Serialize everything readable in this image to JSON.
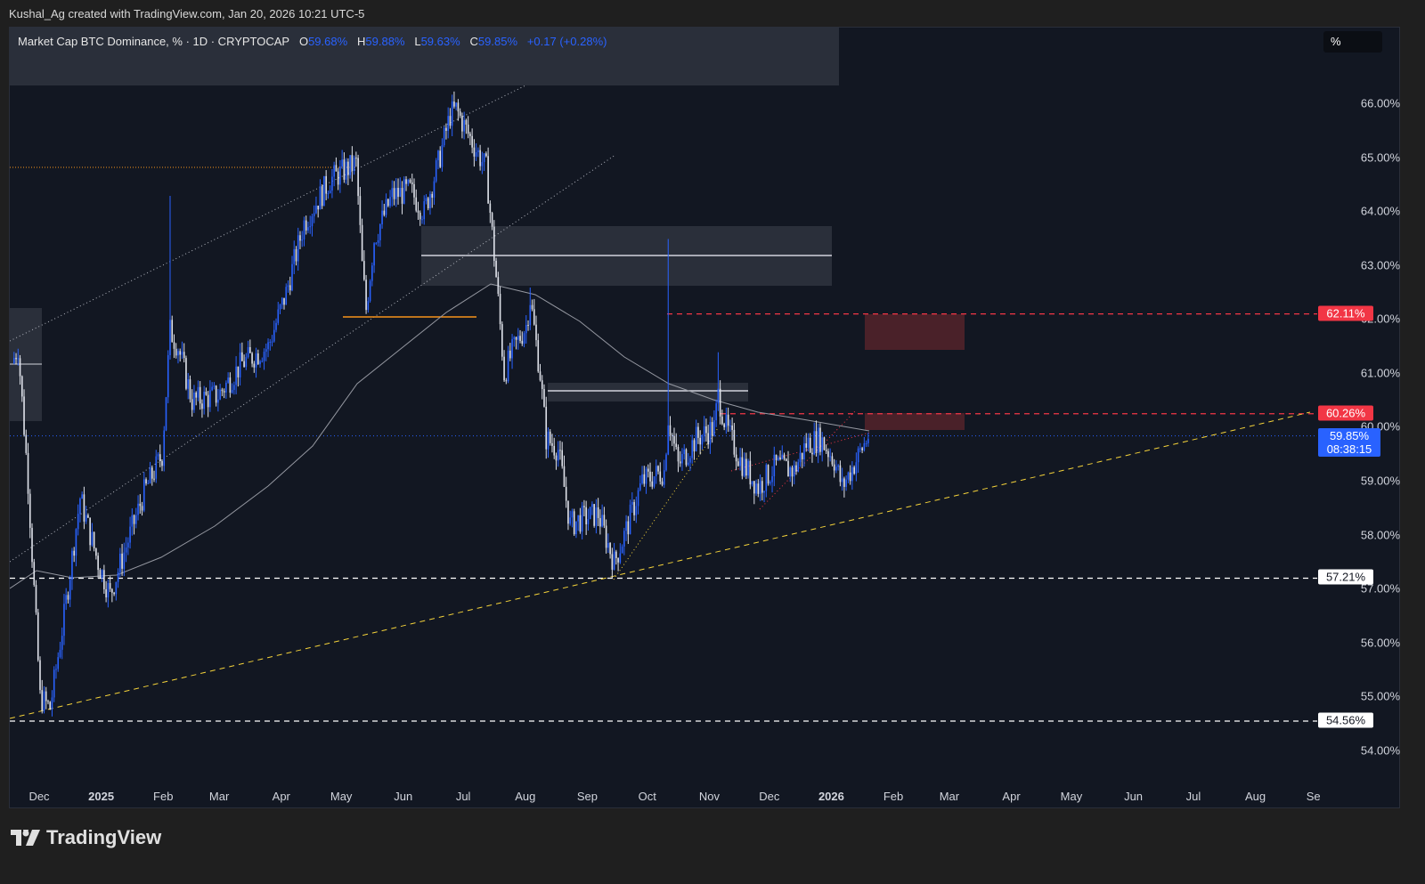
{
  "credit": "Kushal_Ag created with TradingView.com, Jan 20, 2026 10:21 UTC-5",
  "legend": {
    "title": "Market Cap BTC Dominance, % · 1D · CRYPTOCAP",
    "o_label": "O",
    "o": "59.68%",
    "h_label": "H",
    "h": "59.88%",
    "l_label": "L",
    "l": "59.63%",
    "c_label": "C",
    "c": "59.85%",
    "change": "+0.17 (+0.28%)"
  },
  "scale_button": "%",
  "brand": "TradingView",
  "chart_data": {
    "type": "candlestick",
    "title": "Market Cap BTC Dominance, % · 1D · CRYPTOCAP",
    "ylim": [
      53.5,
      66.7
    ],
    "y_ticks": [
      "66.00%",
      "65.00%",
      "64.00%",
      "63.00%",
      "62.00%",
      "61.00%",
      "60.00%",
      "59.00%",
      "58.00%",
      "57.00%",
      "56.00%",
      "55.00%",
      "54.00%"
    ],
    "y_tick_values": [
      66,
      65,
      64,
      63,
      62,
      61,
      60,
      59,
      58,
      57,
      56,
      55,
      54
    ],
    "x_ticks": [
      "Dec",
      "2025",
      "Feb",
      "Mar",
      "Apr",
      "May",
      "Jun",
      "Jul",
      "Aug",
      "Sep",
      "Oct",
      "Nov",
      "Dec",
      "2026",
      "Feb",
      "Mar",
      "Apr",
      "May",
      "Jun",
      "Jul",
      "Aug",
      "Se"
    ],
    "x_tick_days": [
      0,
      31,
      62,
      90,
      121,
      151,
      182,
      212,
      243,
      274,
      304,
      335,
      365,
      396,
      427,
      455,
      486,
      516,
      547,
      577,
      608,
      637
    ],
    "x_unit": "days since Dec 1 2024",
    "close_path": [
      [
        -14,
        61.2
      ],
      [
        -11,
        61.5
      ],
      [
        -6,
        59
      ],
      [
        0,
        55
      ],
      [
        5,
        54.8
      ],
      [
        12,
        56.5
      ],
      [
        20,
        58.7
      ],
      [
        29,
        57.5
      ],
      [
        35,
        56.9
      ],
      [
        43,
        57.8
      ],
      [
        52,
        58.8
      ],
      [
        61,
        59.5
      ],
      [
        65,
        61.8
      ],
      [
        69,
        61.5
      ],
      [
        76,
        60.5
      ],
      [
        89,
        60.6
      ],
      [
        101,
        61.2
      ],
      [
        114,
        61.5
      ],
      [
        123,
        62.5
      ],
      [
        132,
        63.8
      ],
      [
        145,
        64.6
      ],
      [
        158,
        64.9
      ],
      [
        161,
        63.0
      ],
      [
        163,
        62.2
      ],
      [
        167,
        63.5
      ],
      [
        176,
        64.3
      ],
      [
        185,
        64.4
      ],
      [
        192,
        64.0
      ],
      [
        199,
        64.9
      ],
      [
        205,
        65.8
      ],
      [
        208,
        65.9
      ],
      [
        216,
        65.3
      ],
      [
        223,
        64.8
      ],
      [
        228,
        62.8
      ],
      [
        232,
        61.0
      ],
      [
        236,
        61.4
      ],
      [
        243,
        61.9
      ],
      [
        245,
        62.4
      ],
      [
        250,
        61.0
      ],
      [
        253,
        59.8
      ],
      [
        259,
        59.6
      ],
      [
        265,
        58.2
      ],
      [
        270,
        58.3
      ],
      [
        279,
        58.4
      ],
      [
        287,
        57.5
      ],
      [
        292,
        58.0
      ],
      [
        301,
        59.0
      ],
      [
        312,
        59.2
      ],
      [
        314,
        60.2
      ],
      [
        319,
        59.3
      ],
      [
        328,
        59.8
      ],
      [
        337,
        60.0
      ],
      [
        339,
        60.6
      ],
      [
        343,
        60.0
      ],
      [
        350,
        59.4
      ],
      [
        359,
        58.9
      ],
      [
        368,
        59.3
      ],
      [
        377,
        59.2
      ],
      [
        383,
        59.7
      ],
      [
        390,
        59.8
      ],
      [
        397,
        59.4
      ],
      [
        401,
        58.9
      ],
      [
        408,
        59.4
      ],
      [
        414,
        59.85
      ]
    ],
    "spike_highs": [
      [
        65,
        64.3
      ],
      [
        314,
        63.5
      ],
      [
        339,
        61.4
      ],
      [
        245,
        62.6
      ]
    ],
    "levels": [
      {
        "label": "62.11%",
        "value": 62.11,
        "color": "#f23645"
      },
      {
        "label": "60.26%",
        "value": 60.26,
        "color": "#f23645"
      },
      {
        "label": "57.21%",
        "value": 57.21,
        "color": "#ffffff"
      },
      {
        "label": "54.56%",
        "value": 54.56,
        "color": "#ffffff"
      }
    ],
    "last": {
      "price": "59.85%",
      "countdown": "08:38:15",
      "color": "#2962ff"
    },
    "colors": {
      "up": "#2962ff",
      "down": "#e0e3eb",
      "ma": "#9598a1"
    }
  }
}
